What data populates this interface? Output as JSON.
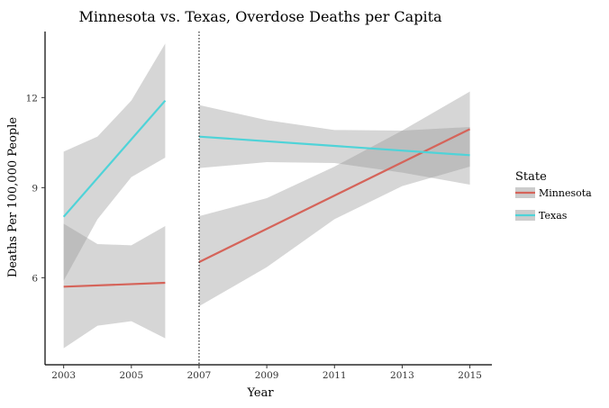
{
  "chart_data": {
    "type": "line",
    "title": "Minnesota vs. Texas, Overdose Deaths per Capita",
    "xlabel": "Year",
    "ylabel": "Deaths Per 100,000 People",
    "xlim": [
      2002.45,
      2015.65
    ],
    "ylim": [
      3.1,
      14.2
    ],
    "x_ticks": [
      2003,
      2005,
      2007,
      2009,
      2011,
      2013,
      2015
    ],
    "y_ticks": [
      6,
      9,
      12
    ],
    "vline": {
      "x": 2007,
      "style": "dotted"
    },
    "grid": false,
    "legend": {
      "title": "State",
      "position": "right"
    },
    "series": [
      {
        "name": "Minnesota",
        "color": "#d5645a",
        "segments": [
          {
            "x": [
              2003,
              2006
            ],
            "y": [
              5.7,
              5.83
            ],
            "ci_x": [
              2003,
              2004,
              2005,
              2006
            ],
            "ci_upper": [
              7.8,
              7.12,
              7.08,
              7.72
            ],
            "ci_lower": [
              3.65,
              4.4,
              4.55,
              3.98
            ]
          },
          {
            "x": [
              2007,
              2015
            ],
            "y": [
              6.52,
              10.95
            ],
            "ci_x": [
              2007,
              2009,
              2011,
              2013,
              2015
            ],
            "ci_upper": [
              8.05,
              8.65,
              9.7,
              10.9,
              12.2
            ],
            "ci_lower": [
              5.05,
              6.35,
              7.95,
              9.05,
              9.7
            ]
          }
        ]
      },
      {
        "name": "Texas",
        "color": "#4fd3d8",
        "segments": [
          {
            "x": [
              2003,
              2006
            ],
            "y": [
              8.03,
              11.9
            ],
            "ci_x": [
              2003,
              2004,
              2005,
              2006
            ],
            "ci_upper": [
              10.2,
              10.7,
              11.9,
              13.8
            ],
            "ci_lower": [
              5.9,
              7.95,
              9.35,
              10.0
            ]
          },
          {
            "x": [
              2007,
              2015
            ],
            "y": [
              10.7,
              10.08
            ],
            "ci_x": [
              2007,
              2009,
              2011,
              2013,
              2015
            ],
            "ci_upper": [
              11.75,
              11.25,
              10.92,
              10.9,
              11.02
            ],
            "ci_lower": [
              9.65,
              9.85,
              9.82,
              9.5,
              9.1
            ]
          }
        ]
      }
    ]
  }
}
